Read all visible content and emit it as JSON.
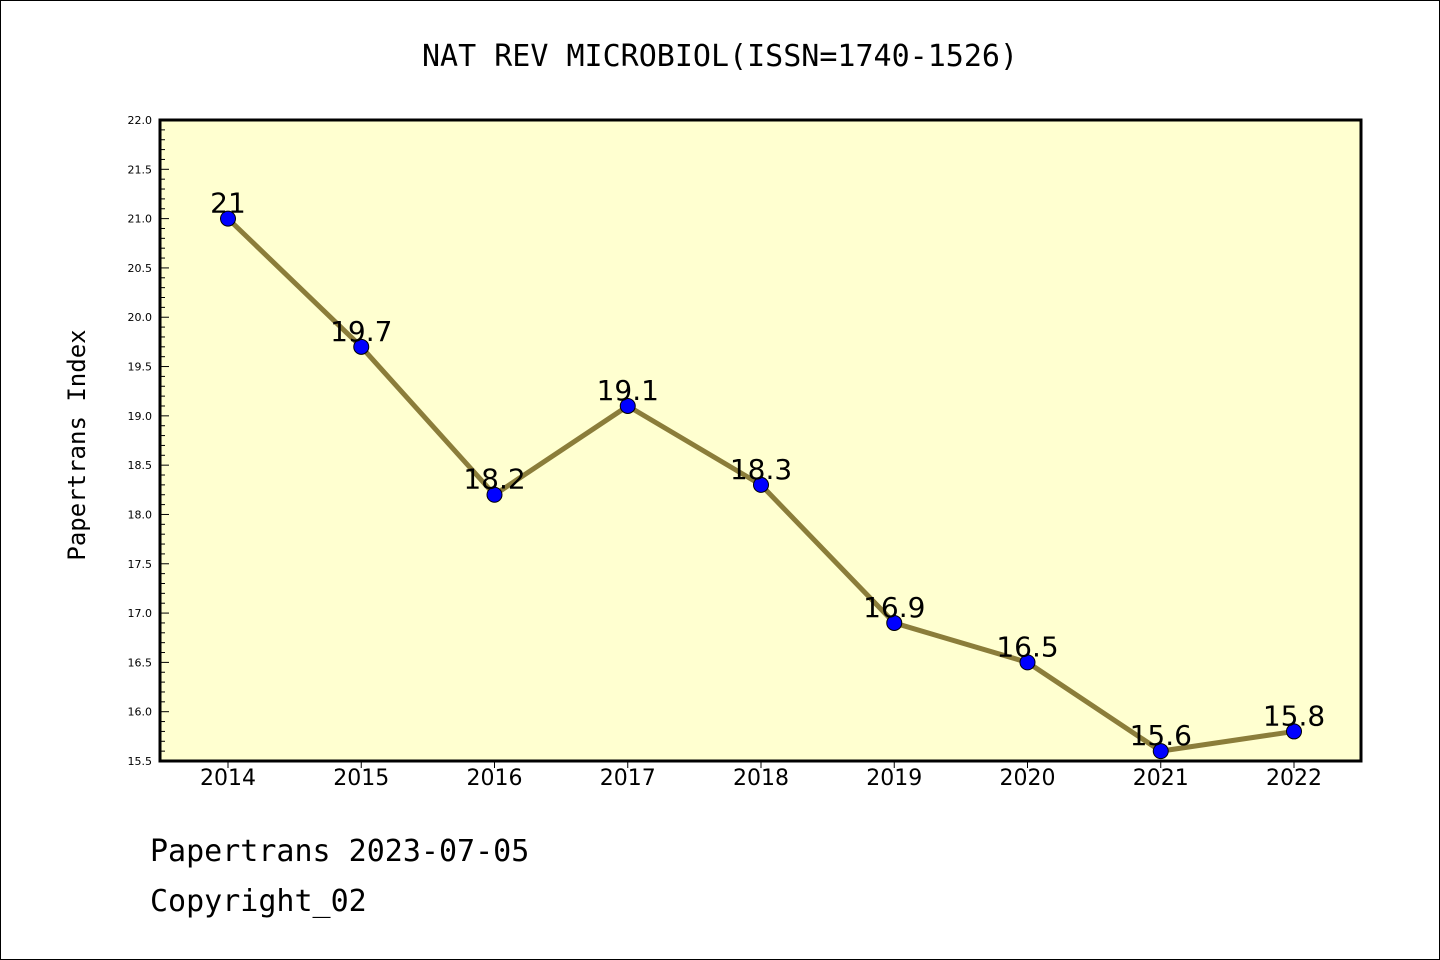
{
  "chart_data": {
    "type": "line",
    "title": "NAT REV MICROBIOL(ISSN=1740-1526)",
    "xlabel": "",
    "ylabel": "Papertrans Index",
    "categories": [
      "2014",
      "2015",
      "2016",
      "2017",
      "2018",
      "2019",
      "2020",
      "2021",
      "2022"
    ],
    "series": [
      {
        "values": [
          21.0,
          19.7,
          18.2,
          19.1,
          18.3,
          16.9,
          16.5,
          15.6,
          15.8
        ]
      }
    ],
    "data_labels": [
      "21",
      "19.7",
      "18.2",
      "19.1",
      "18.3",
      "16.9",
      "16.5",
      "15.6",
      "15.8"
    ],
    "ylim": [
      15.5,
      22.0
    ],
    "yticks": [
      "15.5",
      "16.0",
      "16.5",
      "17.0",
      "17.5",
      "18.0",
      "18.5",
      "19.0",
      "19.5",
      "20.0",
      "20.5",
      "21.0",
      "21.5",
      "22.0"
    ],
    "grid": false,
    "legend": "none",
    "colors": {
      "plot_background": "#ffffd0",
      "line": "#8b7d3a",
      "marker": "#0000ff"
    }
  },
  "footer": {
    "date_line": "Papertrans 2023-07-05",
    "copyright_line": "Copyright_02"
  }
}
